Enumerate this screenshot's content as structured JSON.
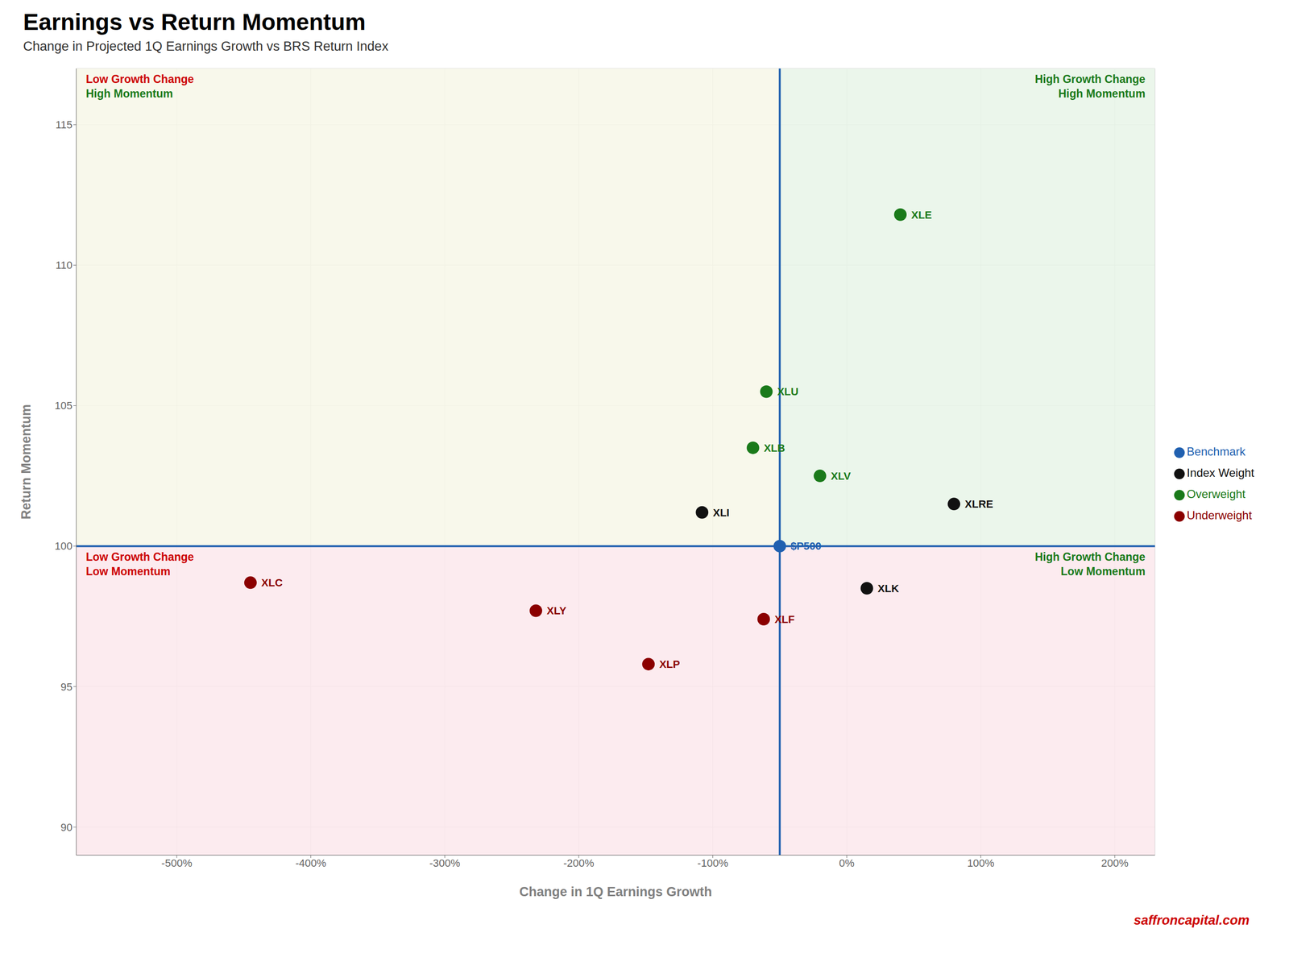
{
  "chart_data": {
    "type": "scatter",
    "title": "Earnings vs Return Momentum",
    "subtitle": "Change in Projected 1Q Earnings Growth vs BRS Return Index",
    "x_label": "Change in 1Q Earnings Growth",
    "y_label": "Return Momentum",
    "watermark": "saffroncapital.com",
    "xlim": [
      -575,
      230
    ],
    "ylim": [
      89.0,
      117.0
    ],
    "xticks": [
      {
        "value": -500,
        "label": "-500%"
      },
      {
        "value": -400,
        "label": "-400%"
      },
      {
        "value": -300,
        "label": "-300%"
      },
      {
        "value": -200,
        "label": "-200%"
      },
      {
        "value": -100,
        "label": "-100%"
      },
      {
        "value": 0,
        "label": "0%"
      },
      {
        "value": 100,
        "label": "100%"
      },
      {
        "value": 200,
        "label": "200%"
      }
    ],
    "yticks": [
      90,
      95,
      100,
      105,
      110,
      115
    ],
    "grid": true,
    "legend": "right",
    "reference_lines": [
      {
        "axis": "x",
        "value": -50,
        "color": "#2060b0"
      },
      {
        "axis": "y",
        "value": 100,
        "color": "#2060b0"
      }
    ],
    "quadrants": [
      {
        "position": "top_left",
        "color": "#f7f7e8",
        "labels": [
          {
            "text": "Low Growth Change",
            "color": "#cc0000"
          },
          {
            "text": "High Momentum",
            "color": "#1a7a1a"
          }
        ]
      },
      {
        "position": "top_right",
        "color": "#e8f5e8",
        "labels": [
          {
            "text": "High Growth Change",
            "color": "#1a7a1a"
          },
          {
            "text": "High Momentum",
            "color": "#1a7a1a"
          }
        ]
      },
      {
        "position": "bottom_left",
        "color": "#fce8ec",
        "labels": [
          {
            "text": "Low Growth Change",
            "color": "#cc0000"
          },
          {
            "text": "Low Momentum",
            "color": "#cc0000"
          }
        ]
      },
      {
        "position": "bottom_right",
        "color": "#fce8ec",
        "labels": [
          {
            "text": "High Growth Change",
            "color": "#1a7a1a"
          },
          {
            "text": "Low Momentum",
            "color": "#1a7a1a"
          }
        ]
      }
    ],
    "series": [
      {
        "name": "Benchmark",
        "color": "#2060b0",
        "values": [
          {
            "label": "$P500",
            "x": -50,
            "y": 100.0
          }
        ]
      },
      {
        "name": "Underweight",
        "color": "#8b0000",
        "values": [
          {
            "label": "XLC",
            "x": -445,
            "y": 98.7
          },
          {
            "label": "XLY",
            "x": -232,
            "y": 97.7
          },
          {
            "label": "XLP",
            "x": -148,
            "y": 95.8
          },
          {
            "label": "XLF",
            "x": -62,
            "y": 97.4
          }
        ]
      },
      {
        "name": "Index Weight",
        "color": "#111111",
        "values": [
          {
            "label": "XLI",
            "x": -108,
            "y": 101.2
          },
          {
            "label": "XLRE",
            "x": 80,
            "y": 101.5
          },
          {
            "label": "XLK",
            "x": 15,
            "y": 98.5
          }
        ]
      },
      {
        "name": "Overweight",
        "color": "#1a7a1a",
        "values": [
          {
            "label": "XLE",
            "x": 40,
            "y": 111.8
          },
          {
            "label": "XLU",
            "x": -60,
            "y": 105.5
          },
          {
            "label": "XLB",
            "x": -70,
            "y": 103.5
          },
          {
            "label": "XLV",
            "x": -20,
            "y": 102.5
          }
        ]
      }
    ]
  }
}
